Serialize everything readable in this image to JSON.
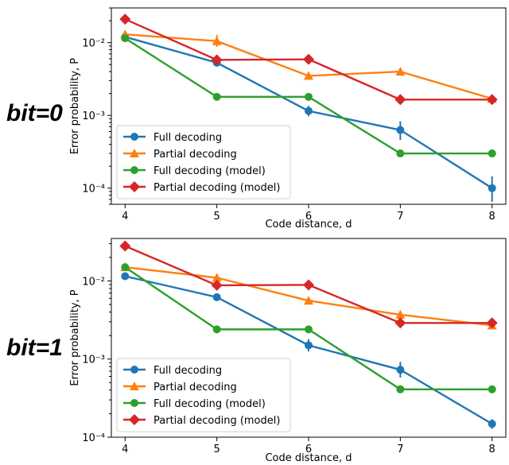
{
  "chart_data": [
    {
      "type": "line",
      "side_label": "bit=0",
      "xlabel": "Code distance, d",
      "ylabel": "Error probability, P",
      "y_scale": "log",
      "xlim": [
        3.85,
        8.15
      ],
      "ylim": [
        6e-05,
        0.03
      ],
      "x_ticks": [
        4,
        5,
        6,
        7,
        8
      ],
      "y_ticks": [
        {
          "value": 0.0001,
          "label": "10⁻⁴"
        },
        {
          "value": 0.001,
          "label": "10⁻³"
        },
        {
          "value": 0.01,
          "label": "10⁻²"
        }
      ],
      "legend_position": "lower-left",
      "series": [
        {
          "name": "Full decoding",
          "color": "#1f77b4",
          "marker": "circle",
          "x": [
            4,
            5,
            6,
            7,
            8
          ],
          "y": [
            0.012,
            0.0053,
            0.00115,
            0.00063,
            0.0001
          ],
          "err_low": [
            0.0105,
            0.0047,
            0.00097,
            0.00046,
            6.5e-05
          ],
          "err_high": [
            0.0137,
            0.006,
            0.00135,
            0.00083,
            0.000145
          ]
        },
        {
          "name": "Partial decoding",
          "color": "#ff7f0e",
          "marker": "triangle-up",
          "x": [
            4,
            5,
            6,
            7,
            8
          ],
          "y": [
            0.013,
            0.0105,
            0.0035,
            0.004,
            0.0017
          ],
          "err_low": [
            0.0122,
            0.0088,
            0.0032,
            0.0037,
            0.0016
          ],
          "err_high": [
            0.0139,
            0.0128,
            0.0039,
            0.0044,
            0.0018
          ]
        },
        {
          "name": "Full decoding (model)",
          "color": "#2ca02c",
          "marker": "circle",
          "x": [
            4,
            5,
            6,
            7,
            8
          ],
          "y": [
            0.0115,
            0.0018,
            0.0018,
            0.0003,
            0.0003
          ]
        },
        {
          "name": "Partial decoding (model)",
          "color": "#d62728",
          "marker": "diamond",
          "x": [
            4,
            5,
            6,
            7,
            8
          ],
          "y": [
            0.021,
            0.0058,
            0.0059,
            0.00165,
            0.00165
          ]
        }
      ]
    },
    {
      "type": "line",
      "side_label": "bit=1",
      "xlabel": "Code distance, d",
      "ylabel": "Error probability, P",
      "y_scale": "log",
      "xlim": [
        3.85,
        8.15
      ],
      "ylim": [
        0.0001,
        0.035
      ],
      "x_ticks": [
        4,
        5,
        6,
        7,
        8
      ],
      "y_ticks": [
        {
          "value": 0.0001,
          "label": "10⁻⁴"
        },
        {
          "value": 0.001,
          "label": "10⁻³"
        },
        {
          "value": 0.01,
          "label": "10⁻²"
        }
      ],
      "legend_position": "lower-left",
      "series": [
        {
          "name": "Full decoding",
          "color": "#1f77b4",
          "marker": "circle",
          "x": [
            4,
            5,
            6,
            7,
            8
          ],
          "y": [
            0.0115,
            0.0062,
            0.0015,
            0.00073,
            0.000148
          ],
          "err_low": [
            0.0105,
            0.0056,
            0.00125,
            0.00058,
            0.000128
          ],
          "err_high": [
            0.0126,
            0.0068,
            0.0018,
            0.00092,
            0.00017
          ]
        },
        {
          "name": "Partial decoding",
          "color": "#ff7f0e",
          "marker": "triangle-up",
          "x": [
            4,
            5,
            6,
            7,
            8
          ],
          "y": [
            0.015,
            0.011,
            0.0056,
            0.0037,
            0.0027
          ],
          "err_low": [
            0.0141,
            0.0101,
            0.0052,
            0.0034,
            0.0025
          ],
          "err_high": [
            0.0159,
            0.012,
            0.006,
            0.0041,
            0.0029
          ]
        },
        {
          "name": "Full decoding (model)",
          "color": "#2ca02c",
          "marker": "circle",
          "x": [
            4,
            5,
            6,
            7,
            8
          ],
          "y": [
            0.015,
            0.0024,
            0.0024,
            0.00041,
            0.00041
          ]
        },
        {
          "name": "Partial decoding (model)",
          "color": "#d62728",
          "marker": "diamond",
          "x": [
            4,
            5,
            6,
            7,
            8
          ],
          "y": [
            0.028,
            0.0088,
            0.0089,
            0.0029,
            0.0029
          ]
        }
      ]
    }
  ]
}
